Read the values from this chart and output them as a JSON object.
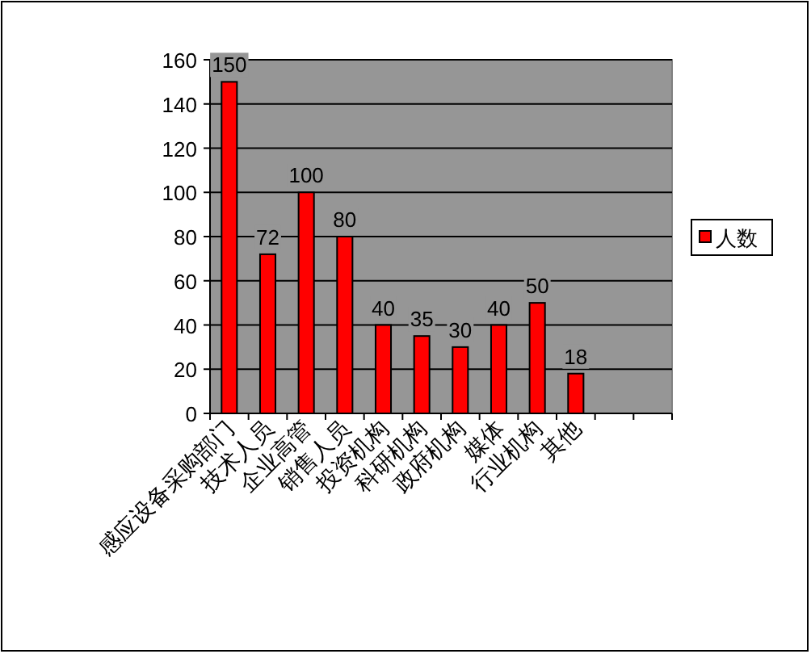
{
  "chart_data": {
    "type": "bar",
    "categories": [
      "感应设备采购部门",
      "技术人员",
      "企业高管",
      "销售人员",
      "投资机构",
      "科研机构",
      "政府机构",
      "媒体",
      "行业机构",
      "其他",
      null,
      null
    ],
    "series": [
      {
        "name": "人数",
        "color": "#ff0000",
        "values": [
          150,
          72,
          100,
          80,
          40,
          35,
          30,
          40,
          50,
          18,
          null,
          null
        ]
      }
    ],
    "ylim": [
      0,
      160
    ],
    "yticks": [
      0,
      20,
      40,
      60,
      80,
      100,
      120,
      140,
      160
    ],
    "grid": "y",
    "legend": "right",
    "data_labels": true
  }
}
